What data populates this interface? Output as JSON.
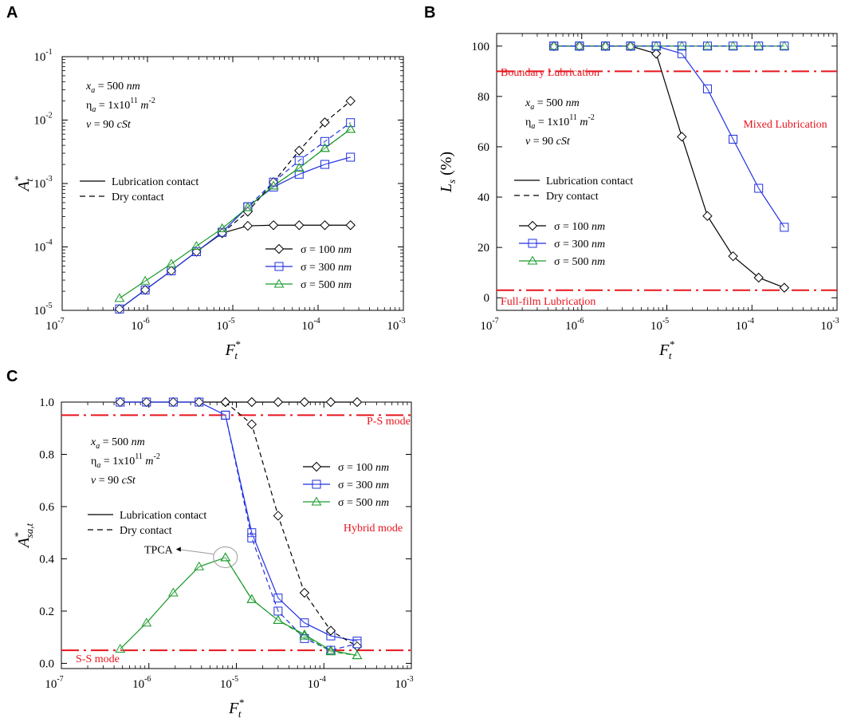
{
  "colors": {
    "s100": "#000000",
    "s300": "#1f2fe0",
    "s500": "#1a9a2a",
    "regime": "#e8141c"
  },
  "common": {
    "params": {
      "x_a": "x",
      "x_a_sub": "a",
      "x_a_val": " = 500 ",
      "x_a_unit": "nm",
      "eta": "η",
      "eta_sub": "a",
      "eta_val": " = 1x10",
      "eta_exp": "11",
      "eta_unit": " m",
      "eta_unit_exp": "-2",
      "nu": "v",
      "nu_val": " = 90 ",
      "nu_unit": "cSt"
    },
    "line_legend": {
      "solid": "Lubrication contact",
      "dashed": "Dry contact"
    },
    "sigma_prefix": "σ = ",
    "sigma_unit": "nm",
    "xlabel": "F",
    "xlabel_sub": "t",
    "xlabel_sup": "*"
  },
  "panels": {
    "A": {
      "letter": "A"
    },
    "B": {
      "letter": "B"
    },
    "C": {
      "letter": "C"
    }
  },
  "chart_data": [
    {
      "id": "A",
      "type": "line",
      "xscale": "log",
      "yscale": "log",
      "xlim": [
        1e-07,
        0.001
      ],
      "ylim": [
        1e-05,
        0.1
      ],
      "x_ticks": [
        {
          "base": "10",
          "exp": "-7"
        },
        {
          "base": "10",
          "exp": "-6"
        },
        {
          "base": "10",
          "exp": "-5"
        },
        {
          "base": "10",
          "exp": "-4"
        },
        {
          "base": "10",
          "exp": "-3"
        }
      ],
      "y_ticks": [
        {
          "base": "10",
          "exp": "-5"
        },
        {
          "base": "10",
          "exp": "-4"
        },
        {
          "base": "10",
          "exp": "-3"
        },
        {
          "base": "10",
          "exp": "-2"
        },
        {
          "base": "10",
          "exp": "-1"
        }
      ],
      "ylabel": "A",
      "ylabel_sub": "t",
      "ylabel_sup": "*",
      "x": [
        4.7e-07,
        9.4e-07,
        1.9e-06,
        3.75e-06,
        7.5e-06,
        1.5e-05,
        3e-05,
        6e-05,
        0.00012,
        0.00024
      ],
      "series": [
        {
          "name": "σ = 100 nm",
          "sigma": "100",
          "style": "solid",
          "marker": "diamond",
          "values": [
            1.05e-05,
            2.1e-05,
            4.2e-05,
            8.4e-05,
            0.000165,
            0.000215,
            0.00022,
            0.00022,
            0.00022,
            0.00022
          ]
        },
        {
          "name": "σ = 300 nm",
          "sigma": "300",
          "style": "solid",
          "marker": "square",
          "values": [
            1.05e-05,
            2.1e-05,
            4.2e-05,
            8.4e-05,
            0.00017,
            0.00043,
            0.00088,
            0.0014,
            0.002,
            0.0026
          ]
        },
        {
          "name": "σ = 500 nm",
          "sigma": "500",
          "style": "solid",
          "marker": "triangle",
          "values": [
            1.55e-05,
            2.9e-05,
            5.4e-05,
            0.000103,
            0.000195,
            0.00042,
            0.00092,
            0.00175,
            0.0036,
            0.0072
          ]
        },
        {
          "name": "σ = 100 nm dry",
          "sigma": "100",
          "style": "dashed",
          "marker": "diamond",
          "values": [
            null,
            null,
            null,
            null,
            0.000165,
            0.00036,
            0.00105,
            0.0033,
            0.0092,
            0.02
          ]
        },
        {
          "name": "σ = 300 nm dry",
          "sigma": "300",
          "style": "dashed",
          "marker": "square",
          "values": [
            null,
            null,
            null,
            null,
            0.00017,
            0.00043,
            0.00105,
            0.0023,
            0.0046,
            0.0091
          ]
        },
        {
          "name": "σ = 500 nm dry",
          "sigma": "500",
          "style": "dashed",
          "marker": "triangle",
          "values": [
            null,
            null,
            null,
            null,
            0.000195,
            0.00042,
            0.00092,
            0.00175,
            0.0036,
            0.0072
          ]
        }
      ]
    },
    {
      "id": "B",
      "type": "line",
      "xscale": "log",
      "yscale": "linear",
      "xlim": [
        1e-07,
        0.001
      ],
      "ylim": [
        -5,
        105
      ],
      "x_ticks": [
        {
          "base": "10",
          "exp": "-7"
        },
        {
          "base": "10",
          "exp": "-6"
        },
        {
          "base": "10",
          "exp": "-5"
        },
        {
          "base": "10",
          "exp": "-4"
        },
        {
          "base": "10",
          "exp": "-3"
        }
      ],
      "y_ticks": [
        "0",
        "20",
        "40",
        "60",
        "80",
        "100"
      ],
      "ylabel": "L",
      "ylabel_sub": "s",
      "ylabel_tail": " (%)",
      "regimes": [
        {
          "label": "Boundary Lubrication",
          "y": 90
        },
        {
          "label": "Full-film Lubrication",
          "y": 3
        }
      ],
      "region_label": "Mixed Lubrication",
      "x": [
        4.7e-07,
        9.4e-07,
        1.9e-06,
        3.75e-06,
        7.5e-06,
        1.5e-05,
        3e-05,
        6e-05,
        0.00012,
        0.00024
      ],
      "series": [
        {
          "name": "σ = 100 nm",
          "sigma": "100",
          "style": "solid",
          "marker": "diamond",
          "values": [
            100,
            100,
            100,
            100,
            97,
            64,
            32.5,
            16.5,
            8,
            4
          ]
        },
        {
          "name": "σ = 300 nm",
          "sigma": "300",
          "style": "solid",
          "marker": "square",
          "values": [
            100,
            100,
            100,
            100,
            100,
            97,
            83,
            63,
            43.5,
            28
          ]
        },
        {
          "name": "σ = 500 nm",
          "sigma": "500",
          "style": "solid",
          "marker": "triangle",
          "values": [
            100,
            100,
            100,
            100,
            100,
            100,
            100,
            100,
            100,
            100
          ]
        },
        {
          "name": "σ = 300 nm dry",
          "sigma": "300",
          "style": "dashed",
          "marker": "square",
          "values": [
            100,
            100,
            100,
            100,
            100,
            100,
            100,
            100,
            100,
            100
          ]
        }
      ]
    },
    {
      "id": "C",
      "type": "line",
      "xscale": "log",
      "yscale": "linear",
      "xlim": [
        1e-07,
        0.001
      ],
      "ylim": [
        -0.02,
        1.0
      ],
      "x_ticks": [
        {
          "base": "10",
          "exp": "-7"
        },
        {
          "base": "10",
          "exp": "-6"
        },
        {
          "base": "10",
          "exp": "-5"
        },
        {
          "base": "10",
          "exp": "-4"
        },
        {
          "base": "10",
          "exp": "-3"
        }
      ],
      "y_ticks": [
        "0.0",
        "0.2",
        "0.4",
        "0.6",
        "0.8",
        "1.0"
      ],
      "ylabel": "A",
      "ylabel_sub": "sa,t",
      "ylabel_sup": "*",
      "regimes": [
        {
          "label": "P-S mode",
          "y": 0.95
        },
        {
          "label": "S-S mode",
          "y": 0.05
        }
      ],
      "region_label": "Hybrid mode",
      "callout": {
        "label": "TPCA",
        "x": 7.5e-06,
        "y": 0.4
      },
      "x": [
        4.7e-07,
        9.4e-07,
        1.9e-06,
        3.75e-06,
        7.5e-06,
        1.5e-05,
        3e-05,
        6e-05,
        0.00012,
        0.00024
      ],
      "series": [
        {
          "name": "σ = 100 nm",
          "sigma": "100",
          "style": "solid",
          "marker": "diamond",
          "values": [
            1.0,
            1.0,
            1.0,
            1.0,
            1.0,
            1.0,
            1.0,
            1.0,
            1.0,
            1.0
          ]
        },
        {
          "name": "σ = 300 nm",
          "sigma": "300",
          "style": "solid",
          "marker": "square",
          "values": [
            1.0,
            1.0,
            1.0,
            1.0,
            0.95,
            0.5,
            0.25,
            0.155,
            0.105,
            0.085
          ]
        },
        {
          "name": "σ = 500 nm",
          "sigma": "500",
          "style": "solid",
          "marker": "triangle",
          "values": [
            0.055,
            0.155,
            0.27,
            0.37,
            0.405,
            0.245,
            0.165,
            0.11,
            0.05,
            0.03
          ]
        },
        {
          "name": "σ = 100 nm dry",
          "sigma": "100",
          "style": "dashed",
          "marker": "diamond",
          "values": [
            null,
            null,
            null,
            null,
            1.0,
            0.915,
            0.565,
            0.27,
            0.125,
            0.065
          ]
        },
        {
          "name": "σ = 300 nm dry",
          "sigma": "300",
          "style": "dashed",
          "marker": "square",
          "values": [
            null,
            null,
            null,
            null,
            0.95,
            0.48,
            0.2,
            0.095,
            0.05,
            0.075
          ]
        },
        {
          "name": "σ = 500 nm dry",
          "sigma": "500",
          "style": "dashed",
          "marker": "triangle",
          "values": [
            null,
            null,
            null,
            null,
            0.405,
            0.245,
            0.165,
            0.105,
            0.045,
            0.03
          ]
        }
      ]
    }
  ]
}
